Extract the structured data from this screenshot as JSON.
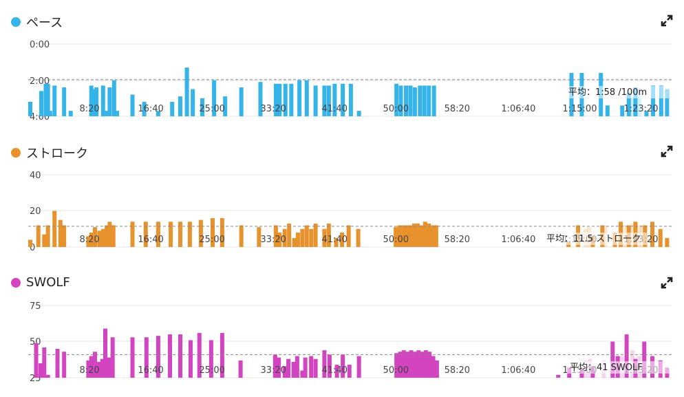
{
  "chart_data": [
    {
      "type": "bar",
      "name": "pace",
      "title": "ペース",
      "color": "#35b4ea",
      "yticks": [
        "0:00",
        "2:00",
        "4:00"
      ],
      "ylim": [
        0,
        4
      ],
      "inverted": true,
      "average": 1.97,
      "average_label": "平均：1:58 /100m",
      "xticks": [
        "8:20",
        "16:40",
        "25:00",
        "33:20",
        "41:40",
        "50:00",
        "58:20",
        "1:06:40",
        "1:15:00",
        "1:23:20"
      ],
      "x_minutes": [
        0,
        1.5,
        2.1,
        2.4,
        2.7,
        3.3,
        4.6,
        5.5,
        8.3,
        8.6,
        9.0,
        9.9,
        10.3,
        10.8,
        11.4,
        11.8,
        13.9,
        15.5,
        17.4,
        19.3,
        20.4,
        21.3,
        22.1,
        23.4,
        25.0,
        26.5,
        28.7,
        31.3,
        33.4,
        33.9,
        34.7,
        35.5,
        36.6,
        37.6,
        38.8,
        40.0,
        40.6,
        41.4,
        42.5,
        43.6,
        44.7,
        49.8,
        50.4,
        51.1,
        51.7,
        52.3,
        53.0,
        53.6,
        54.2,
        54.9,
        73.6,
        75.0,
        77.6,
        78.5,
        80.5,
        81.4,
        82.3,
        83.8,
        84.7,
        85.8,
        86.6
      ],
      "values": [
        3.2,
        2.6,
        2.2,
        2.2,
        3.7,
        2.3,
        2.4,
        3.7,
        2.3,
        2.5,
        2.4,
        2.3,
        3.7,
        2.4,
        2.0,
        3.7,
        2.8,
        3.2,
        3.7,
        3.2,
        2.9,
        1.3,
        2.5,
        3.0,
        2.0,
        2.9,
        2.4,
        2.1,
        2.2,
        2.2,
        2.2,
        2.2,
        2.0,
        2.0,
        2.3,
        2.3,
        2.3,
        2.2,
        2.2,
        2.2,
        3.7,
        2.2,
        2.3,
        2.3,
        2.3,
        2.4,
        2.3,
        2.3,
        2.3,
        2.3,
        1.6,
        1.6,
        1.6,
        3.4,
        3.4,
        2.7,
        2.4,
        3.7,
        2.3,
        2.3,
        2.5
      ],
      "ghost_x": [
        81.9,
        82.8
      ],
      "ghost_values": [
        3.0,
        2.5
      ]
    },
    {
      "type": "bar",
      "name": "stroke",
      "title": "ストローク",
      "color": "#e8922d",
      "yticks": [
        "40",
        "20",
        "0"
      ],
      "ylim": [
        0,
        40
      ],
      "inverted": false,
      "average": 11.5,
      "average_label": "平均：11.5 ストローク",
      "xticks": [
        "8:20",
        "16:40",
        "25:00",
        "33:20",
        "41:40",
        "50:00",
        "58:20",
        "1:06:40",
        "1:15:00",
        "1:23:20"
      ],
      "x_minutes": [
        0,
        1.1,
        1.9,
        2.4,
        3.3,
        4.1,
        4.6,
        7.9,
        8.3,
        8.8,
        9.4,
        9.9,
        10.4,
        10.8,
        11.3,
        13.9,
        15.7,
        17.4,
        19.1,
        20.4,
        21.7,
        23.2,
        24.8,
        26.1,
        28.7,
        31.1,
        33.4,
        33.9,
        34.6,
        35.2,
        35.9,
        36.4,
        37.0,
        37.6,
        38.2,
        38.8,
        40.0,
        40.6,
        41.6,
        42.4,
        43.3,
        44.6,
        49.7,
        50.2,
        50.7,
        51.2,
        51.7,
        52.2,
        52.7,
        53.2,
        53.7,
        54.2,
        54.7,
        55.2,
        73.2,
        74.5,
        76.5,
        77.8,
        79.5,
        80.3,
        81.4,
        82.3,
        83.6,
        84.6,
        85.7,
        86.6
      ],
      "values": [
        4,
        12,
        7,
        12,
        20,
        15,
        12,
        6,
        8,
        11,
        9,
        10,
        12,
        14,
        12,
        14,
        14,
        14,
        14,
        14,
        14,
        15,
        16,
        16,
        12,
        11,
        12,
        8,
        10,
        13,
        5,
        8,
        10,
        12,
        10,
        13,
        10,
        13,
        5,
        8,
        12,
        10,
        11,
        12,
        12,
        12,
        12,
        13,
        13,
        12,
        14,
        13,
        12,
        12,
        3,
        12,
        6,
        12,
        8,
        14,
        12,
        14,
        12,
        14,
        10,
        5
      ],
      "ghost_x": [
        75.5,
        76.0,
        78.2,
        80.9,
        81.9,
        82.8,
        83.2
      ],
      "ghost_values": [
        10,
        11,
        12,
        12,
        13,
        12,
        12
      ]
    },
    {
      "type": "bar",
      "name": "swolf",
      "title": "SWOLF",
      "color": "#d345c0",
      "yticks": [
        "75",
        "50",
        "25"
      ],
      "ylim": [
        25,
        75
      ],
      "inverted": false,
      "average": 41,
      "average_label": "平均：41 SWOLF",
      "xticks": [
        "8:20",
        "16:40",
        "25:00",
        "33:20",
        "41:40",
        "50:00",
        "58:20",
        "1:06:40",
        "1:15:00",
        "1:23:20"
      ],
      "x_minutes": [
        0.8,
        1.4,
        1.9,
        2.4,
        3.7,
        4.6,
        7.9,
        8.3,
        8.8,
        9.3,
        9.8,
        10.2,
        10.7,
        11.2,
        13.9,
        15.8,
        17.4,
        19.0,
        20.4,
        21.8,
        23.0,
        24.6,
        26.1,
        28.6,
        33.3,
        33.8,
        34.6,
        35.1,
        35.8,
        36.3,
        37.0,
        37.4,
        38.2,
        38.8,
        40.0,
        40.7,
        41.7,
        42.5,
        43.4,
        44.7,
        49.8,
        50.3,
        50.8,
        51.3,
        51.8,
        52.3,
        52.8,
        53.3,
        53.8,
        54.3,
        54.8,
        55.3,
        71.8,
        73.3,
        75.0,
        76.5,
        79.2,
        79.9,
        81.1,
        82.3,
        83.5,
        84.6,
        85.7,
        86.6
      ],
      "values": [
        49,
        35,
        46,
        27,
        45,
        43,
        37,
        40,
        43,
        36,
        38,
        59,
        39,
        53,
        53,
        53,
        54,
        55,
        55,
        51,
        56,
        51,
        56,
        37,
        41,
        39,
        33,
        38,
        36,
        40,
        30,
        39,
        40,
        38,
        44,
        41,
        34,
        41,
        34,
        40,
        42,
        43,
        44,
        43,
        44,
        43,
        44,
        43,
        44,
        43,
        40,
        37,
        27,
        32,
        31,
        33,
        50,
        40,
        55,
        38,
        50,
        40,
        37,
        32
      ],
      "ghost_x": [
        75.5,
        76.1,
        78.0,
        79.4,
        80.5,
        81.9,
        82.8
      ],
      "ghost_values": [
        37,
        38,
        37,
        40,
        40,
        44,
        40
      ]
    }
  ],
  "icons": {
    "expand": "expand-arrows-icon"
  }
}
